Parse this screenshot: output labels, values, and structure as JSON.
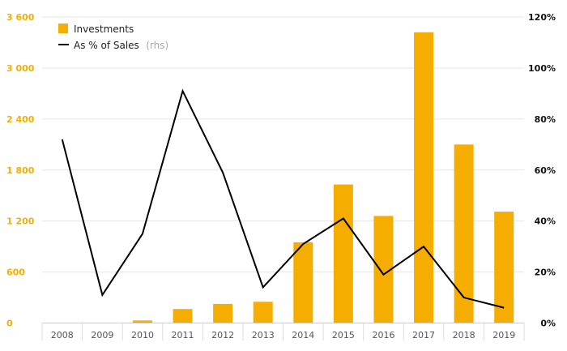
{
  "chart_data": {
    "type": "bar",
    "categories": [
      "2008",
      "2009",
      "2010",
      "2011",
      "2012",
      "2013",
      "2014",
      "2015",
      "2016",
      "2017",
      "2018",
      "2019"
    ],
    "series": [
      {
        "name": "Investments",
        "axis": "left",
        "type": "bar",
        "color": "#f5ae00",
        "values": [
          0,
          0,
          30,
          165,
          225,
          250,
          950,
          1630,
          1260,
          3420,
          2100,
          1310
        ]
      },
      {
        "name": "As % of Sales",
        "name_note": "(rhs)",
        "axis": "right",
        "type": "line",
        "color": "#000000",
        "values": [
          72,
          11,
          35,
          91,
          59,
          14,
          31,
          41,
          19,
          30,
          10,
          6
        ]
      }
    ],
    "y_left": {
      "ticks": [
        "0",
        "600",
        "1 200",
        "1 800",
        "2 400",
        "3 000",
        "3 600"
      ],
      "min": 0,
      "max": 3600,
      "color": "#f5ae00"
    },
    "y_right": {
      "ticks": [
        "0%",
        "20%",
        "40%",
        "60%",
        "80%",
        "100%",
        "120%"
      ],
      "min": 0,
      "max": 120
    },
    "grid": true,
    "legend": "top-left",
    "title": "",
    "xlabel": "",
    "ylabel": ""
  }
}
